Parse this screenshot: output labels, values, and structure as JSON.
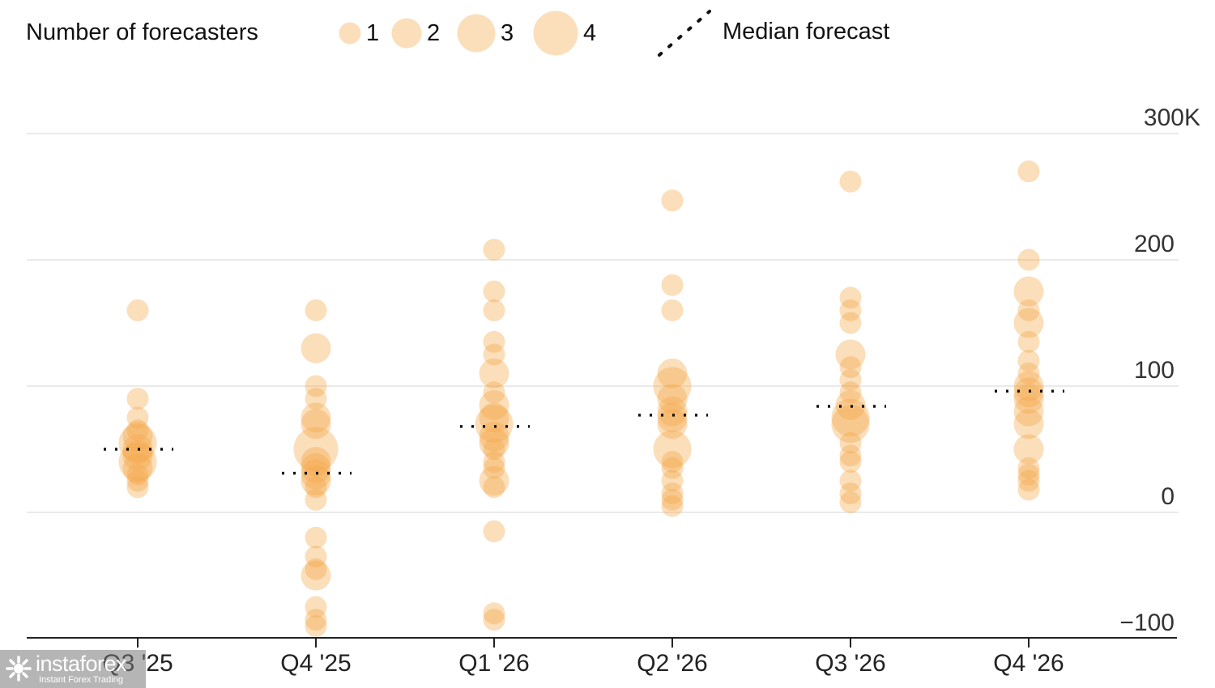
{
  "chart_data": {
    "type": "scatter",
    "title": "",
    "xlabel": "",
    "ylabel": "",
    "categories": [
      "Q3 '25",
      "Q4 '25",
      "Q1 '26",
      "Q2 '26",
      "Q3 '26",
      "Q4 '26"
    ],
    "ylim": [
      -100,
      300
    ],
    "yticks": [
      {
        "value": 300,
        "label": "300K"
      },
      {
        "value": 200,
        "label": "200"
      },
      {
        "value": 100,
        "label": "100"
      },
      {
        "value": 0,
        "label": "0"
      },
      {
        "value": -100,
        "label": "−100"
      }
    ],
    "grid": true,
    "legend": {
      "position": "top",
      "size_title": "Number of forecasters",
      "sizes": [
        {
          "count": 1,
          "label": "1"
        },
        {
          "count": 2,
          "label": "2"
        },
        {
          "count": 3,
          "label": "3"
        },
        {
          "count": 4,
          "label": "4"
        }
      ],
      "median_label": "Median forecast"
    },
    "colors": {
      "bubble": "#f5a94a",
      "median": "#111111",
      "grid": "#e3e3e3",
      "axis": "#222222"
    },
    "series": [
      {
        "category": "Q3 '25",
        "median": 50,
        "points": [
          {
            "y": 160,
            "n": 1
          },
          {
            "y": 90,
            "n": 1
          },
          {
            "y": 75,
            "n": 1
          },
          {
            "y": 65,
            "n": 1
          },
          {
            "y": 60,
            "n": 2
          },
          {
            "y": 55,
            "n": 3
          },
          {
            "y": 50,
            "n": 2
          },
          {
            "y": 45,
            "n": 2
          },
          {
            "y": 40,
            "n": 3
          },
          {
            "y": 35,
            "n": 2
          },
          {
            "y": 30,
            "n": 1
          },
          {
            "y": 25,
            "n": 1
          },
          {
            "y": 20,
            "n": 1
          }
        ]
      },
      {
        "category": "Q4 '25",
        "median": 31,
        "points": [
          {
            "y": 160,
            "n": 1
          },
          {
            "y": 130,
            "n": 2
          },
          {
            "y": 100,
            "n": 1
          },
          {
            "y": 90,
            "n": 1
          },
          {
            "y": 75,
            "n": 2
          },
          {
            "y": 70,
            "n": 2
          },
          {
            "y": 50,
            "n": 4
          },
          {
            "y": 40,
            "n": 2
          },
          {
            "y": 35,
            "n": 2
          },
          {
            "y": 30,
            "n": 2
          },
          {
            "y": 25,
            "n": 2
          },
          {
            "y": 20,
            "n": 1
          },
          {
            "y": 10,
            "n": 1
          },
          {
            "y": -20,
            "n": 1
          },
          {
            "y": -35,
            "n": 1
          },
          {
            "y": -45,
            "n": 1
          },
          {
            "y": -50,
            "n": 2
          },
          {
            "y": -75,
            "n": 1
          },
          {
            "y": -85,
            "n": 1
          },
          {
            "y": -90,
            "n": 1
          }
        ]
      },
      {
        "category": "Q1 '26",
        "median": 68,
        "points": [
          {
            "y": 208,
            "n": 1
          },
          {
            "y": 175,
            "n": 1
          },
          {
            "y": 160,
            "n": 1
          },
          {
            "y": 135,
            "n": 1
          },
          {
            "y": 125,
            "n": 1
          },
          {
            "y": 110,
            "n": 2
          },
          {
            "y": 95,
            "n": 1
          },
          {
            "y": 85,
            "n": 2
          },
          {
            "y": 75,
            "n": 2
          },
          {
            "y": 70,
            "n": 3
          },
          {
            "y": 60,
            "n": 2
          },
          {
            "y": 55,
            "n": 2
          },
          {
            "y": 50,
            "n": 1
          },
          {
            "y": 40,
            "n": 1
          },
          {
            "y": 35,
            "n": 1
          },
          {
            "y": 25,
            "n": 2
          },
          {
            "y": 20,
            "n": 1
          },
          {
            "y": -15,
            "n": 1
          },
          {
            "y": -80,
            "n": 1
          },
          {
            "y": -85,
            "n": 1
          }
        ]
      },
      {
        "category": "Q2 '26",
        "median": 77,
        "points": [
          {
            "y": 247,
            "n": 1
          },
          {
            "y": 180,
            "n": 1
          },
          {
            "y": 160,
            "n": 1
          },
          {
            "y": 110,
            "n": 2
          },
          {
            "y": 100,
            "n": 3
          },
          {
            "y": 90,
            "n": 2
          },
          {
            "y": 80,
            "n": 2
          },
          {
            "y": 75,
            "n": 2
          },
          {
            "y": 70,
            "n": 2
          },
          {
            "y": 50,
            "n": 3
          },
          {
            "y": 40,
            "n": 1
          },
          {
            "y": 35,
            "n": 1
          },
          {
            "y": 25,
            "n": 1
          },
          {
            "y": 15,
            "n": 1
          },
          {
            "y": 10,
            "n": 1
          },
          {
            "y": 5,
            "n": 1
          }
        ]
      },
      {
        "category": "Q3 '26",
        "median": 84,
        "points": [
          {
            "y": 262,
            "n": 1
          },
          {
            "y": 170,
            "n": 1
          },
          {
            "y": 160,
            "n": 1
          },
          {
            "y": 150,
            "n": 1
          },
          {
            "y": 125,
            "n": 2
          },
          {
            "y": 115,
            "n": 1
          },
          {
            "y": 105,
            "n": 1
          },
          {
            "y": 95,
            "n": 1
          },
          {
            "y": 85,
            "n": 2
          },
          {
            "y": 75,
            "n": 3
          },
          {
            "y": 70,
            "n": 3
          },
          {
            "y": 55,
            "n": 1
          },
          {
            "y": 45,
            "n": 1
          },
          {
            "y": 40,
            "n": 1
          },
          {
            "y": 25,
            "n": 1
          },
          {
            "y": 15,
            "n": 1
          },
          {
            "y": 8,
            "n": 1
          }
        ]
      },
      {
        "category": "Q4 '26",
        "median": 96,
        "points": [
          {
            "y": 270,
            "n": 1
          },
          {
            "y": 200,
            "n": 1
          },
          {
            "y": 175,
            "n": 2
          },
          {
            "y": 160,
            "n": 1
          },
          {
            "y": 150,
            "n": 2
          },
          {
            "y": 135,
            "n": 1
          },
          {
            "y": 120,
            "n": 1
          },
          {
            "y": 110,
            "n": 1
          },
          {
            "y": 100,
            "n": 2
          },
          {
            "y": 95,
            "n": 2
          },
          {
            "y": 90,
            "n": 2
          },
          {
            "y": 80,
            "n": 2
          },
          {
            "y": 70,
            "n": 2
          },
          {
            "y": 50,
            "n": 2
          },
          {
            "y": 35,
            "n": 1
          },
          {
            "y": 30,
            "n": 1
          },
          {
            "y": 25,
            "n": 1
          },
          {
            "y": 18,
            "n": 1
          }
        ]
      }
    ]
  },
  "watermark": {
    "name": "instaforex",
    "tagline": "Instant Forex Trading"
  }
}
